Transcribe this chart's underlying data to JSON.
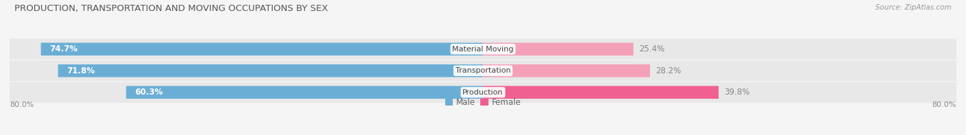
{
  "title": "PRODUCTION, TRANSPORTATION AND MOVING OCCUPATIONS BY SEX",
  "source": "Source: ZipAtlas.com",
  "categories": [
    "Material Moving",
    "Transportation",
    "Production"
  ],
  "male_values": [
    74.7,
    71.8,
    60.3
  ],
  "female_values": [
    25.4,
    28.2,
    39.8
  ],
  "male_color": "#6aaed6",
  "female_color_top": "#f4a0b8",
  "female_color_bottom": "#f06090",
  "female_colors": [
    "#f4a0b8",
    "#f4a0b8",
    "#f06090"
  ],
  "axis_min": -80.0,
  "axis_max": 80.0,
  "axis_label_left": "80.0%",
  "axis_label_right": "80.0%",
  "background_color": "#f5f5f5",
  "row_bg_color": "#e8e8e8",
  "title_fontsize": 9.5,
  "source_fontsize": 7.5,
  "bar_label_fontsize": 8.5,
  "cat_label_fontsize": 8,
  "tick_fontsize": 8,
  "legend_fontsize": 8.5,
  "male_legend_color": "#6aaed6",
  "female_legend_color": "#f06090"
}
